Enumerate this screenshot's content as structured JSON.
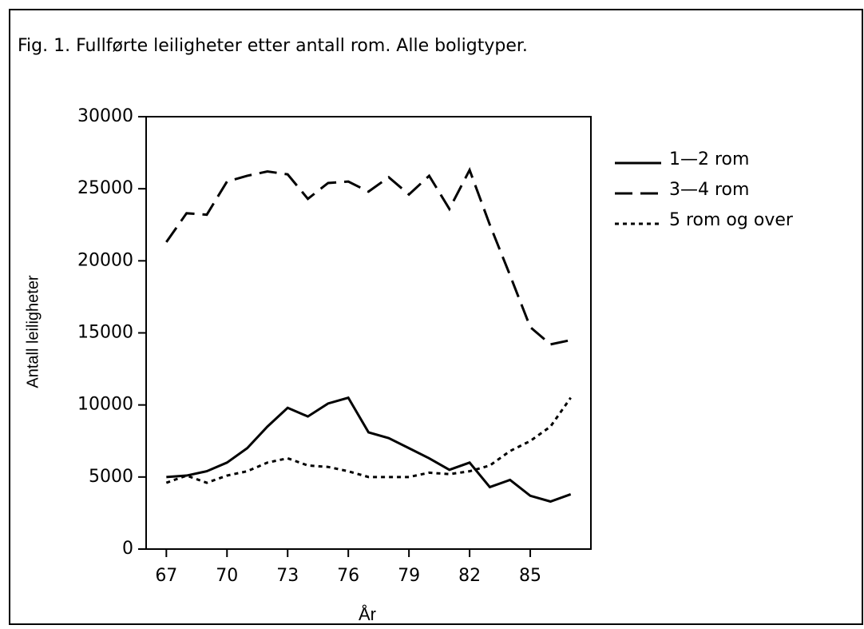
{
  "chart_data": {
    "type": "line",
    "title": "Fig. 1. Fullførte leiligheter etter antall rom. Alle boligtyper.",
    "x_label": "År",
    "y_label": "Antall leiligheter",
    "x": [
      67,
      68,
      69,
      70,
      71,
      72,
      73,
      74,
      75,
      76,
      77,
      78,
      79,
      80,
      81,
      82,
      83,
      84,
      85,
      86,
      87
    ],
    "series": [
      {
        "name": "1—2 rom",
        "color": "#000000",
        "style": "solid",
        "values": [
          5000,
          5100,
          5400,
          6000,
          7000,
          8500,
          9800,
          9200,
          10100,
          10500,
          8100,
          7700,
          7000,
          6300,
          5500,
          6000,
          4300,
          4800,
          3700,
          3300,
          3800
        ]
      },
      {
        "name": "3—4 rom",
        "color": "#000000",
        "style": "long-dash",
        "values": [
          21300,
          23300,
          23200,
          25500,
          25900,
          26200,
          26000,
          24300,
          25400,
          25500,
          24800,
          25800,
          24600,
          25900,
          23600,
          26300,
          22500,
          19000,
          15400,
          14200,
          14500
        ]
      },
      {
        "name": "5 rom og over",
        "color": "#000000",
        "style": "short-dash",
        "values": [
          4600,
          5100,
          4600,
          5100,
          5400,
          6000,
          6300,
          5800,
          5700,
          5400,
          5000,
          5000,
          5000,
          5300,
          5200,
          5400,
          5800,
          6800,
          7500,
          8500,
          10500
        ]
      }
    ],
    "xlim": [
      66,
      88
    ],
    "xticks": [
      67,
      70,
      73,
      76,
      79,
      82,
      85
    ],
    "ylim": [
      0,
      30000
    ],
    "yticks": [
      0,
      5000,
      10000,
      15000,
      20000,
      25000,
      30000
    ],
    "legend": "right"
  }
}
